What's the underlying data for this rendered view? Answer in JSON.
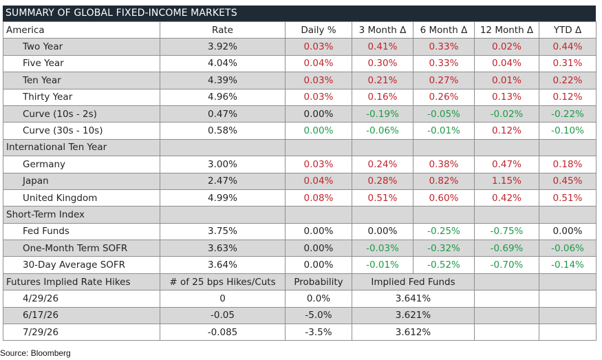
{
  "title": "SUMMARY OF GLOBAL FIXED-INCOME MARKETS",
  "header": [
    "America",
    "Rate",
    "Daily %",
    "3 Month Δ",
    "6 Month Δ",
    "12 Month Δ",
    "YTD Δ"
  ],
  "america_rows": [
    {
      "label": "Two Year",
      "rate": "3.92%",
      "daily": "0.03%",
      "m3": "0.41%",
      "m6": "0.33%",
      "m12": "0.02%",
      "ytd": "0.44%"
    },
    {
      "label": "Five Year",
      "rate": "4.04%",
      "daily": "0.04%",
      "m3": "0.30%",
      "m6": "0.33%",
      "m12": "0.04%",
      "ytd": "0.31%"
    },
    {
      "label": "Ten Year",
      "rate": "4.39%",
      "daily": "0.03%",
      "m3": "0.21%",
      "m6": "0.27%",
      "m12": "0.01%",
      "ytd": "0.22%"
    },
    {
      "label": "Thirty Year",
      "rate": "4.96%",
      "daily": "0.03%",
      "m3": "0.16%",
      "m6": "0.26%",
      "m12": "0.13%",
      "ytd": "0.12%"
    },
    {
      "label": "Curve (10s - 2s)",
      "rate": "0.47%",
      "daily": "0.00%",
      "m3": "-0.19%",
      "m6": "-0.05%",
      "m12": "-0.02%",
      "ytd": "-0.22%"
    },
    {
      "label": "Curve (30s - 10s)",
      "rate": "0.58%",
      "daily": "0.00%",
      "m3": "-0.06%",
      "m6": "-0.01%",
      "m12": "0.12%",
      "ytd": "-0.10%"
    }
  ],
  "international_header": "International Ten Year",
  "international_rows": [
    {
      "label": "Germany",
      "rate": "3.00%",
      "daily": "0.03%",
      "m3": "0.24%",
      "m6": "0.38%",
      "m12": "0.47%",
      "ytd": "0.18%"
    },
    {
      "label": "Japan",
      "rate": "2.47%",
      "daily": "0.04%",
      "m3": "0.28%",
      "m6": "0.82%",
      "m12": "1.15%",
      "ytd": "0.45%"
    },
    {
      "label": "United Kingdom",
      "rate": "4.99%",
      "daily": "0.08%",
      "m3": "0.51%",
      "m6": "0.60%",
      "m12": "0.42%",
      "ytd": "0.51%"
    }
  ],
  "short_term_header": "Short-Term Index",
  "short_term_rows": [
    {
      "label": "Fed Funds",
      "rate": "3.75%",
      "daily": "0.00%",
      "m3": "0.00%",
      "m6": "-0.25%",
      "m12": "-0.75%",
      "ytd": "0.00%"
    },
    {
      "label": "One-Month Term SOFR",
      "rate": "3.63%",
      "daily": "0.00%",
      "m3": "-0.03%",
      "m6": "-0.32%",
      "m12": "-0.69%",
      "ytd": "-0.06%"
    },
    {
      "label": "30-Day Average SOFR",
      "rate": "3.64%",
      "daily": "0.00%",
      "m3": "-0.01%",
      "m6": "-0.52%",
      "m12": "-0.70%",
      "ytd": "-0.14%"
    }
  ],
  "futures_header": {
    "label": "Futures Implied Rate Hikes",
    "hikes": "# of 25 bps Hikes/Cuts",
    "probability": "Probability",
    "implied": "Implied Fed Funds"
  },
  "futures_rows": [
    {
      "label": "4/29/26",
      "hikes": "0",
      "probability": "0.0%",
      "implied": "3.641%"
    },
    {
      "label": "6/17/26",
      "hikes": "-0.05",
      "probability": "-5.0%",
      "implied": "3.621%"
    },
    {
      "label": "7/29/26",
      "hikes": "-0.085",
      "probability": "-3.5%",
      "implied": "3.612%"
    }
  ],
  "source": "Source: Bloomberg",
  "colors": {
    "title_bg": "#1f2a35",
    "shade": "#d8d8d8",
    "positive": "#c0242c",
    "negative": "#1e9a46"
  }
}
